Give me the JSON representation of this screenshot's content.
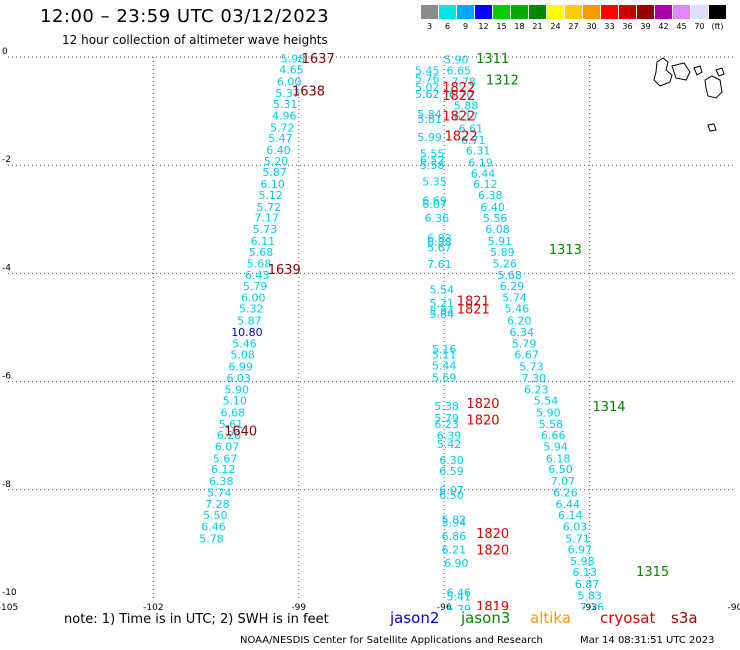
{
  "header": {
    "title": "12:00 – 23:59 UTC 03/12/2023",
    "subtitle": "12 hour collection of altimeter wave heights"
  },
  "color_scale": [
    {
      "label": "3",
      "color": "#8c8c8c"
    },
    {
      "label": "6",
      "color": "#00e6e6"
    },
    {
      "label": "9",
      "color": "#00aaff"
    },
    {
      "label": "12",
      "color": "#0000ff"
    },
    {
      "label": "15",
      "color": "#00cc00"
    },
    {
      "label": "18",
      "color": "#00aa00"
    },
    {
      "label": "21",
      "color": "#008800"
    },
    {
      "label": "24",
      "color": "#ffff00"
    },
    {
      "label": "27",
      "color": "#ffcc00"
    },
    {
      "label": "30",
      "color": "#ff9900"
    },
    {
      "label": "33",
      "color": "#ff0000"
    },
    {
      "label": "36",
      "color": "#cc0000"
    },
    {
      "label": "39",
      "color": "#990000"
    },
    {
      "label": "42",
      "color": "#aa00aa"
    },
    {
      "label": "45",
      "color": "#dd88ff"
    },
    {
      "label": "70",
      "color": "#ddddff"
    },
    {
      "label": "(ft)",
      "color": "#000000"
    }
  ],
  "footer": {
    "note": "note:  1) Time is in UTC;  2) SWH is in feet",
    "satellites": [
      {
        "name": "jason2",
        "color": "#0000cc"
      },
      {
        "name": "jason3",
        "color": "#008800"
      },
      {
        "name": "altika",
        "color": "#ff9900"
      },
      {
        "name": "cryosat",
        "color": "#dd0000"
      },
      {
        "name": "s3a",
        "color": "#990000"
      }
    ],
    "credit": "NOAA/NESDIS Center for Satellite Applications and Research",
    "timestamp": "Mar 14 08:31:51 UTC 2023"
  },
  "chart_data": {
    "type": "scatter",
    "title": "12:00 – 23:59 UTC 03/12/2023",
    "x_ticks": [
      "-105",
      "-102",
      "-99",
      "-96",
      "-93",
      "-90"
    ],
    "y_ticks": [
      "0",
      "-2",
      "-4",
      "-6",
      "-8",
      "-10"
    ],
    "xlim": [
      -105,
      -90
    ],
    "ylim": [
      -10,
      0
    ],
    "grid": true,
    "colors": {
      "cyan": "#00ccee",
      "blue": "#0000cc",
      "jason3": "#008800",
      "cryosat": "#dd0000",
      "s3a": "#880000"
    },
    "values": [
      {
        "x": -99.12,
        "y": -0.03,
        "text": "5.98",
        "c": "cyan"
      },
      {
        "x": -99.15,
        "y": -0.23,
        "text": "4.65",
        "c": "cyan"
      },
      {
        "x": -99.2,
        "y": -0.45,
        "text": "6.00",
        "c": "cyan"
      },
      {
        "x": -99.23,
        "y": -0.67,
        "text": "5.37",
        "c": "cyan"
      },
      {
        "x": -99.28,
        "y": -0.87,
        "text": "5.31",
        "c": "cyan"
      },
      {
        "x": -99.3,
        "y": -1.08,
        "text": "4.96",
        "c": "cyan"
      },
      {
        "x": -99.34,
        "y": -1.3,
        "text": "5.72",
        "c": "cyan"
      },
      {
        "x": -99.38,
        "y": -1.5,
        "text": "5.47",
        "c": "cyan"
      },
      {
        "x": -99.42,
        "y": -1.72,
        "text": "6.40",
        "c": "cyan"
      },
      {
        "x": -99.47,
        "y": -1.92,
        "text": "5.20",
        "c": "cyan"
      },
      {
        "x": -99.5,
        "y": -2.13,
        "text": "5.87",
        "c": "cyan"
      },
      {
        "x": -99.54,
        "y": -2.35,
        "text": "6.10",
        "c": "cyan"
      },
      {
        "x": -99.58,
        "y": -2.55,
        "text": "5.12",
        "c": "cyan"
      },
      {
        "x": -99.62,
        "y": -2.77,
        "text": "5.72",
        "c": "cyan"
      },
      {
        "x": -99.66,
        "y": -2.97,
        "text": "7.17",
        "c": "cyan"
      },
      {
        "x": -99.7,
        "y": -3.18,
        "text": "5.73",
        "c": "cyan"
      },
      {
        "x": -99.74,
        "y": -3.4,
        "text": "6.11",
        "c": "cyan"
      },
      {
        "x": -99.78,
        "y": -3.6,
        "text": "5.68",
        "c": "cyan"
      },
      {
        "x": -99.82,
        "y": -3.82,
        "text": "5.68",
        "c": "cyan"
      },
      {
        "x": -99.86,
        "y": -4.03,
        "text": "6.43",
        "c": "cyan"
      },
      {
        "x": -99.9,
        "y": -4.23,
        "text": "5.79",
        "c": "cyan"
      },
      {
        "x": -99.94,
        "y": -4.45,
        "text": "6.00",
        "c": "cyan"
      },
      {
        "x": -99.98,
        "y": -4.65,
        "text": "5.32",
        "c": "cyan"
      },
      {
        "x": -100.02,
        "y": -4.87,
        "text": "5.87",
        "c": "cyan"
      },
      {
        "x": -100.07,
        "y": -5.08,
        "text": "10.80",
        "c": "blue"
      },
      {
        "x": -100.12,
        "y": -5.3,
        "text": "5.46",
        "c": "cyan"
      },
      {
        "x": -100.16,
        "y": -5.5,
        "text": "5.08",
        "c": "cyan"
      },
      {
        "x": -100.2,
        "y": -5.72,
        "text": "6.99",
        "c": "cyan"
      },
      {
        "x": -100.24,
        "y": -5.93,
        "text": "6.03",
        "c": "cyan"
      },
      {
        "x": -100.28,
        "y": -6.15,
        "text": "5.90",
        "c": "cyan"
      },
      {
        "x": -100.32,
        "y": -6.35,
        "text": "5.10",
        "c": "cyan"
      },
      {
        "x": -100.36,
        "y": -6.57,
        "text": "6.68",
        "c": "cyan"
      },
      {
        "x": -100.4,
        "y": -6.78,
        "text": "5.61",
        "c": "cyan"
      },
      {
        "x": -100.44,
        "y": -6.99,
        "text": "6.28",
        "c": "cyan"
      },
      {
        "x": -100.48,
        "y": -7.2,
        "text": "6.07",
        "c": "cyan"
      },
      {
        "x": -100.52,
        "y": -7.42,
        "text": "5.67",
        "c": "cyan"
      },
      {
        "x": -100.56,
        "y": -7.62,
        "text": "6.12",
        "c": "cyan"
      },
      {
        "x": -100.6,
        "y": -7.84,
        "text": "6.38",
        "c": "cyan"
      },
      {
        "x": -100.64,
        "y": -8.05,
        "text": "5.74",
        "c": "cyan"
      },
      {
        "x": -100.68,
        "y": -8.26,
        "text": "7.28",
        "c": "cyan"
      },
      {
        "x": -100.72,
        "y": -8.47,
        "text": "5.50",
        "c": "cyan"
      },
      {
        "x": -100.76,
        "y": -8.68,
        "text": "6.46",
        "c": "cyan"
      },
      {
        "x": -100.8,
        "y": -8.9,
        "text": "5.78",
        "c": "cyan"
      },
      {
        "x": -95.75,
        "y": -0.05,
        "text": "5.90",
        "c": "cyan"
      },
      {
        "x": -96.35,
        "y": -0.25,
        "text": "5.45",
        "c": "cyan"
      },
      {
        "x": -95.7,
        "y": -0.25,
        "text": "6.65",
        "c": "cyan"
      },
      {
        "x": -96.35,
        "y": -0.4,
        "text": "5.76",
        "c": "cyan"
      },
      {
        "x": -95.6,
        "y": -0.45,
        "text": "7.78",
        "c": "cyan"
      },
      {
        "x": -96.35,
        "y": -0.55,
        "text": "5.02",
        "c": "cyan"
      },
      {
        "x": -96.35,
        "y": -0.68,
        "text": "5.62",
        "c": "cyan"
      },
      {
        "x": -95.65,
        "y": -0.68,
        "text": "6.70",
        "c": "cyan"
      },
      {
        "x": -95.55,
        "y": -0.9,
        "text": "5.88",
        "c": "cyan"
      },
      {
        "x": -96.3,
        "y": -1.05,
        "text": "5.84",
        "c": "cyan"
      },
      {
        "x": -95.55,
        "y": -1.1,
        "text": "6.17",
        "c": "cyan"
      },
      {
        "x": -96.3,
        "y": -1.15,
        "text": "5.81",
        "c": "cyan"
      },
      {
        "x": -95.45,
        "y": -1.32,
        "text": "6.61",
        "c": "cyan"
      },
      {
        "x": -96.3,
        "y": -1.48,
        "text": "5.99",
        "c": "cyan"
      },
      {
        "x": -95.4,
        "y": -1.53,
        "text": "6.71",
        "c": "cyan"
      },
      {
        "x": -95.3,
        "y": -1.73,
        "text": "6.31",
        "c": "cyan"
      },
      {
        "x": -96.25,
        "y": -1.78,
        "text": "5.55",
        "c": "cyan"
      },
      {
        "x": -96.25,
        "y": -1.9,
        "text": "6.52",
        "c": "cyan"
      },
      {
        "x": -95.25,
        "y": -1.95,
        "text": "6.19",
        "c": "cyan"
      },
      {
        "x": -96.25,
        "y": -2.0,
        "text": "5.58",
        "c": "cyan"
      },
      {
        "x": -95.2,
        "y": -2.15,
        "text": "6.44",
        "c": "cyan"
      },
      {
        "x": -96.2,
        "y": -2.3,
        "text": "5.35",
        "c": "cyan"
      },
      {
        "x": -95.15,
        "y": -2.35,
        "text": "6.12",
        "c": "cyan"
      },
      {
        "x": -95.05,
        "y": -2.55,
        "text": "6.38",
        "c": "cyan"
      },
      {
        "x": -96.2,
        "y": -2.65,
        "text": "6.69",
        "c": "cyan"
      },
      {
        "x": -96.2,
        "y": -2.72,
        "text": "6.07",
        "c": "cyan"
      },
      {
        "x": -95.0,
        "y": -2.77,
        "text": "6.40",
        "c": "cyan"
      },
      {
        "x": -96.15,
        "y": -2.98,
        "text": "6.36",
        "c": "cyan"
      },
      {
        "x": -94.95,
        "y": -2.98,
        "text": "5.56",
        "c": "cyan"
      },
      {
        "x": -94.9,
        "y": -3.18,
        "text": "6.08",
        "c": "cyan"
      },
      {
        "x": -96.1,
        "y": -3.35,
        "text": "6.83",
        "c": "cyan"
      },
      {
        "x": -94.85,
        "y": -3.4,
        "text": "5.91",
        "c": "cyan"
      },
      {
        "x": -96.1,
        "y": -3.42,
        "text": "6.88",
        "c": "cyan"
      },
      {
        "x": -96.1,
        "y": -3.52,
        "text": "5.67",
        "c": "cyan"
      },
      {
        "x": -94.8,
        "y": -3.6,
        "text": "5.89",
        "c": "cyan"
      },
      {
        "x": -96.1,
        "y": -3.83,
        "text": "7.61",
        "c": "cyan"
      },
      {
        "x": -94.75,
        "y": -3.82,
        "text": "5.26",
        "c": "cyan"
      },
      {
        "x": -94.65,
        "y": -4.03,
        "text": "5.68",
        "c": "cyan"
      },
      {
        "x": -94.6,
        "y": -4.23,
        "text": "6.29",
        "c": "cyan"
      },
      {
        "x": -96.05,
        "y": -4.3,
        "text": "5.54",
        "c": "cyan"
      },
      {
        "x": -94.55,
        "y": -4.45,
        "text": "5.74",
        "c": "cyan"
      },
      {
        "x": -96.05,
        "y": -4.55,
        "text": "5.21",
        "c": "cyan"
      },
      {
        "x": -94.5,
        "y": -4.65,
        "text": "5.46",
        "c": "cyan"
      },
      {
        "x": -96.05,
        "y": -4.7,
        "text": "5.84",
        "c": "cyan"
      },
      {
        "x": -96.05,
        "y": -4.75,
        "text": "5.84",
        "c": "cyan"
      },
      {
        "x": -94.45,
        "y": -4.87,
        "text": "6.20",
        "c": "cyan"
      },
      {
        "x": -94.4,
        "y": -5.08,
        "text": "6.34",
        "c": "cyan"
      },
      {
        "x": -94.35,
        "y": -5.3,
        "text": "5.79",
        "c": "cyan"
      },
      {
        "x": -96.0,
        "y": -5.4,
        "text": "5.16",
        "c": "cyan"
      },
      {
        "x": -94.3,
        "y": -5.5,
        "text": "6.67",
        "c": "cyan"
      },
      {
        "x": -96.0,
        "y": -5.5,
        "text": "5.11",
        "c": "cyan"
      },
      {
        "x": -96.0,
        "y": -5.7,
        "text": "5.44",
        "c": "cyan"
      },
      {
        "x": -94.2,
        "y": -5.72,
        "text": "5.73",
        "c": "cyan"
      },
      {
        "x": -94.15,
        "y": -5.93,
        "text": "7.30",
        "c": "cyan"
      },
      {
        "x": -96.0,
        "y": -5.92,
        "text": "5.69",
        "c": "cyan"
      },
      {
        "x": -94.1,
        "y": -6.15,
        "text": "6.23",
        "c": "cyan"
      },
      {
        "x": -93.9,
        "y": -6.35,
        "text": "5.54",
        "c": "cyan"
      },
      {
        "x": -95.95,
        "y": -6.45,
        "text": "5.38",
        "c": "cyan"
      },
      {
        "x": -93.85,
        "y": -6.57,
        "text": "5.90",
        "c": "cyan"
      },
      {
        "x": -95.95,
        "y": -6.67,
        "text": "5.79",
        "c": "cyan"
      },
      {
        "x": -95.95,
        "y": -6.78,
        "text": "6.23",
        "c": "cyan"
      },
      {
        "x": -93.8,
        "y": -6.78,
        "text": "5.58",
        "c": "cyan"
      },
      {
        "x": -95.9,
        "y": -7.0,
        "text": "6.39",
        "c": "cyan"
      },
      {
        "x": -93.75,
        "y": -6.99,
        "text": "6.66",
        "c": "cyan"
      },
      {
        "x": -95.9,
        "y": -7.15,
        "text": "5.42",
        "c": "cyan"
      },
      {
        "x": -93.7,
        "y": -7.2,
        "text": "5.94",
        "c": "cyan"
      },
      {
        "x": -93.65,
        "y": -7.42,
        "text": "6.18",
        "c": "cyan"
      },
      {
        "x": -95.85,
        "y": -7.45,
        "text": "6.30",
        "c": "cyan"
      },
      {
        "x": -93.6,
        "y": -7.62,
        "text": "6.50",
        "c": "cyan"
      },
      {
        "x": -95.85,
        "y": -7.65,
        "text": "6.59",
        "c": "cyan"
      },
      {
        "x": -93.55,
        "y": -7.84,
        "text": "7.07",
        "c": "cyan"
      },
      {
        "x": -95.85,
        "y": -8.0,
        "text": "6.07",
        "c": "cyan"
      },
      {
        "x": -93.5,
        "y": -8.05,
        "text": "6.26",
        "c": "cyan"
      },
      {
        "x": -95.85,
        "y": -8.1,
        "text": "6.50",
        "c": "cyan"
      },
      {
        "x": -93.45,
        "y": -8.26,
        "text": "6.44",
        "c": "cyan"
      },
      {
        "x": -93.4,
        "y": -8.47,
        "text": "6.14",
        "c": "cyan"
      },
      {
        "x": -95.8,
        "y": -8.55,
        "text": "5.82",
        "c": "cyan"
      },
      {
        "x": -95.8,
        "y": -8.6,
        "text": "5.94",
        "c": "cyan"
      },
      {
        "x": -93.3,
        "y": -8.68,
        "text": "6.03",
        "c": "cyan"
      },
      {
        "x": -95.8,
        "y": -8.85,
        "text": "6.86",
        "c": "cyan"
      },
      {
        "x": -93.25,
        "y": -8.9,
        "text": "5.71",
        "c": "cyan"
      },
      {
        "x": -95.8,
        "y": -9.1,
        "text": "6.21",
        "c": "cyan"
      },
      {
        "x": -93.2,
        "y": -9.1,
        "text": "6.97",
        "c": "cyan"
      },
      {
        "x": -93.15,
        "y": -9.32,
        "text": "5.98",
        "c": "cyan"
      },
      {
        "x": -95.75,
        "y": -9.35,
        "text": "6.90",
        "c": "cyan"
      },
      {
        "x": -93.1,
        "y": -9.52,
        "text": "6.13",
        "c": "cyan"
      },
      {
        "x": -93.05,
        "y": -9.74,
        "text": "6.87",
        "c": "cyan"
      },
      {
        "x": -93.0,
        "y": -9.95,
        "text": "5.83",
        "c": "cyan"
      },
      {
        "x": -95.7,
        "y": -9.9,
        "text": "6.46",
        "c": "cyan"
      },
      {
        "x": -95.7,
        "y": -9.97,
        "text": "5.41",
        "c": "cyan"
      },
      {
        "x": -92.95,
        "y": -10.17,
        "text": "7.26",
        "c": "cyan"
      },
      {
        "x": -95.7,
        "y": -10.2,
        "text": "6.79",
        "c": "cyan"
      },
      {
        "x": -95.7,
        "y": -10.28,
        "text": "6.45",
        "c": "cyan"
      },
      {
        "x": -92.9,
        "y": -10.37,
        "text": "6.93",
        "c": "cyan"
      }
    ],
    "labels": [
      {
        "x": -98.6,
        "y": -0.02,
        "text": "1637",
        "c": "s3a"
      },
      {
        "x": -98.8,
        "y": -0.62,
        "text": "1638",
        "c": "s3a"
      },
      {
        "x": -99.3,
        "y": -3.92,
        "text": "1639",
        "c": "s3a"
      },
      {
        "x": -100.2,
        "y": -6.9,
        "text": "1640",
        "c": "s3a"
      },
      {
        "x": -95.0,
        "y": -0.02,
        "text": "1311",
        "c": "jason3"
      },
      {
        "x": -94.8,
        "y": -0.42,
        "text": "1312",
        "c": "jason3"
      },
      {
        "x": -93.5,
        "y": -3.55,
        "text": "1313",
        "c": "jason3"
      },
      {
        "x": -92.6,
        "y": -6.45,
        "text": "1314",
        "c": "jason3"
      },
      {
        "x": -91.7,
        "y": -9.5,
        "text": "1315",
        "c": "jason3"
      },
      {
        "x": -95.7,
        "y": -0.55,
        "text": "1822",
        "c": "cryosat"
      },
      {
        "x": -95.7,
        "y": -0.7,
        "text": "1822",
        "c": "cryosat"
      },
      {
        "x": -95.7,
        "y": -1.08,
        "text": "1822",
        "c": "cryosat"
      },
      {
        "x": -95.65,
        "y": -1.45,
        "text": "1822",
        "c": "cryosat"
      },
      {
        "x": -95.4,
        "y": -4.5,
        "text": "1821",
        "c": "cryosat"
      },
      {
        "x": -95.4,
        "y": -4.65,
        "text": "1821",
        "c": "cryosat"
      },
      {
        "x": -95.2,
        "y": -6.4,
        "text": "1820",
        "c": "cryosat"
      },
      {
        "x": -95.2,
        "y": -6.7,
        "text": "1820",
        "c": "cryosat"
      },
      {
        "x": -95.0,
        "y": -8.8,
        "text": "1820",
        "c": "cryosat"
      },
      {
        "x": -95.0,
        "y": -9.1,
        "text": "1820",
        "c": "cryosat"
      },
      {
        "x": -95.0,
        "y": -10.15,
        "text": "1819",
        "c": "cryosat"
      },
      {
        "x": -95.0,
        "y": -10.3,
        "text": "1819",
        "c": "cryosat"
      }
    ]
  }
}
